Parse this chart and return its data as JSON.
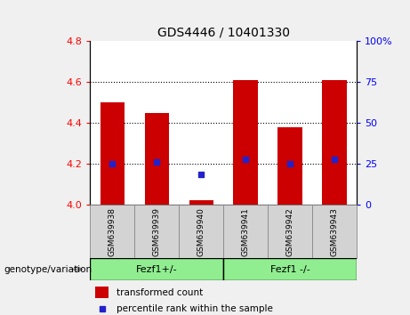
{
  "title": "GDS4446 / 10401330",
  "samples": [
    "GSM639938",
    "GSM639939",
    "GSM639940",
    "GSM639941",
    "GSM639942",
    "GSM639943"
  ],
  "bar_heights": [
    4.5,
    4.45,
    4.02,
    4.61,
    4.38,
    4.61
  ],
  "blue_dots": [
    4.2,
    4.21,
    4.15,
    4.22,
    4.2,
    4.22
  ],
  "ylim_left": [
    4.0,
    4.8
  ],
  "ylim_right": [
    0,
    100
  ],
  "yticks_left": [
    4.0,
    4.2,
    4.4,
    4.6,
    4.8
  ],
  "yticks_right": [
    0,
    25,
    50,
    75,
    100
  ],
  "ytick_labels_right": [
    "0",
    "25",
    "50",
    "75",
    "100%"
  ],
  "bar_color": "#cc0000",
  "dot_color": "#2222cc",
  "bar_width": 0.55,
  "group0_label": "Fezf1+/-",
  "group1_label": "Fezf1 -/-",
  "group_color": "#90ee90",
  "sample_box_color": "#d3d3d3",
  "legend_red_label": "transformed count",
  "legend_blue_label": "percentile rank within the sample",
  "genotype_label": "genotype/variation",
  "plot_bg": "#ffffff",
  "fig_bg": "#f0f0f0"
}
